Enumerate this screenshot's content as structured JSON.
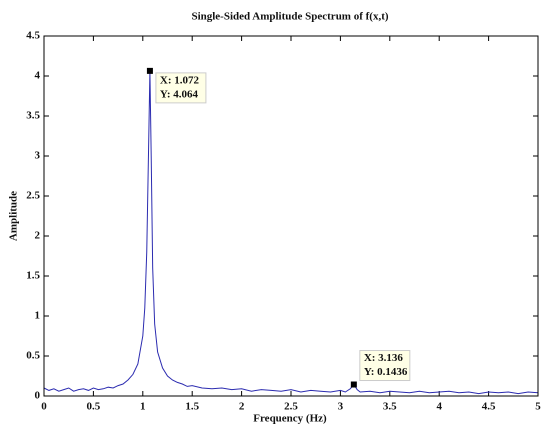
{
  "chart_data": {
    "type": "line",
    "title": "Single-Sided Amplitude Spectrum of f(x,t)",
    "x_label": "Frequency (Hz)",
    "y_label": "Amplitude",
    "xlim": [
      0,
      5
    ],
    "ylim": [
      0,
      4.5
    ],
    "xticks": [
      0,
      0.5,
      1,
      1.5,
      2,
      2.5,
      3,
      3.5,
      4,
      4.5,
      5
    ],
    "yticks": [
      0,
      0.5,
      1,
      1.5,
      2,
      2.5,
      3,
      3.5,
      4,
      4.5
    ],
    "grid": false,
    "series": [
      {
        "color": "#2b2bb0",
        "x": [
          0,
          0.05,
          0.1,
          0.15,
          0.2,
          0.25,
          0.3,
          0.35,
          0.4,
          0.45,
          0.5,
          0.55,
          0.6,
          0.65,
          0.7,
          0.75,
          0.8,
          0.85,
          0.9,
          0.95,
          1.0,
          1.02,
          1.04,
          1.06,
          1.072,
          1.085,
          1.1,
          1.12,
          1.15,
          1.2,
          1.25,
          1.3,
          1.35,
          1.4,
          1.45,
          1.5,
          1.6,
          1.7,
          1.8,
          1.9,
          2.0,
          2.1,
          2.2,
          2.3,
          2.4,
          2.5,
          2.6,
          2.7,
          2.8,
          2.9,
          3.0,
          3.05,
          3.1,
          3.136,
          3.17,
          3.2,
          3.3,
          3.4,
          3.5,
          3.6,
          3.7,
          3.8,
          3.9,
          4.0,
          4.1,
          4.2,
          4.3,
          4.4,
          4.5,
          4.6,
          4.7,
          4.8,
          4.9,
          5.0
        ],
        "values": [
          0.1,
          0.07,
          0.09,
          0.06,
          0.08,
          0.1,
          0.06,
          0.08,
          0.09,
          0.07,
          0.1,
          0.08,
          0.09,
          0.11,
          0.1,
          0.13,
          0.15,
          0.2,
          0.27,
          0.4,
          0.75,
          1.1,
          1.8,
          3.2,
          4.064,
          3.0,
          1.6,
          0.9,
          0.55,
          0.35,
          0.25,
          0.2,
          0.17,
          0.15,
          0.12,
          0.13,
          0.1,
          0.09,
          0.1,
          0.08,
          0.09,
          0.06,
          0.08,
          0.07,
          0.06,
          0.08,
          0.05,
          0.07,
          0.06,
          0.05,
          0.07,
          0.05,
          0.09,
          0.1436,
          0.08,
          0.05,
          0.06,
          0.04,
          0.06,
          0.05,
          0.04,
          0.06,
          0.04,
          0.05,
          0.06,
          0.04,
          0.05,
          0.03,
          0.05,
          0.04,
          0.05,
          0.03,
          0.05,
          0.04
        ]
      }
    ],
    "annotations": [
      {
        "x": 1.072,
        "y": 4.064,
        "x_text": "X: 1.072",
        "y_text": "Y: 4.064"
      },
      {
        "x": 3.136,
        "y": 0.1436,
        "x_text": "X: 3.136",
        "y_text": "Y: 0.1436"
      }
    ]
  }
}
